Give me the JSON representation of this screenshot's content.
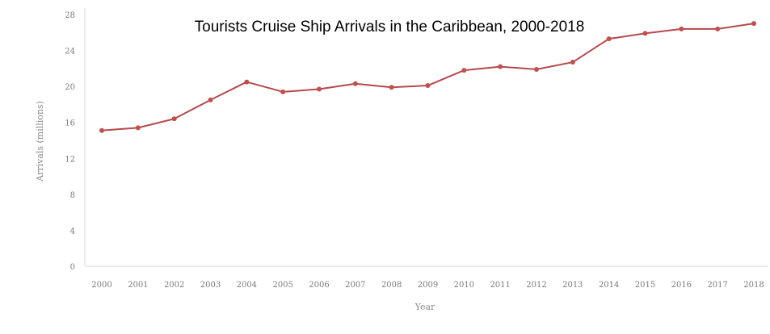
{
  "chart_data": {
    "type": "line",
    "title": "Tourists Cruise Ship Arrivals in the Caribbean, 2000-2018",
    "xlabel": "Year",
    "ylabel": "Arrivals (millions)",
    "ylim": [
      0,
      28
    ],
    "yticks": [
      0,
      4,
      8,
      12,
      16,
      20,
      24,
      28
    ],
    "grid": false,
    "legend": "none",
    "categories": [
      "2000",
      "2001",
      "2002",
      "2003",
      "2004",
      "2005",
      "2006",
      "2007",
      "2008",
      "2009",
      "2010",
      "2011",
      "2012",
      "2013",
      "2014",
      "2015",
      "2016",
      "2017",
      "2018"
    ],
    "series": [
      {
        "values": [
          15.1,
          15.4,
          16.4,
          18.5,
          20.5,
          19.4,
          19.7,
          20.3,
          19.9,
          20.1,
          21.8,
          22.2,
          21.9,
          22.7,
          25.3,
          25.9,
          26.4,
          26.4,
          27.0
        ],
        "color": "#b5494c",
        "marker_color": "#c0504d"
      }
    ]
  }
}
